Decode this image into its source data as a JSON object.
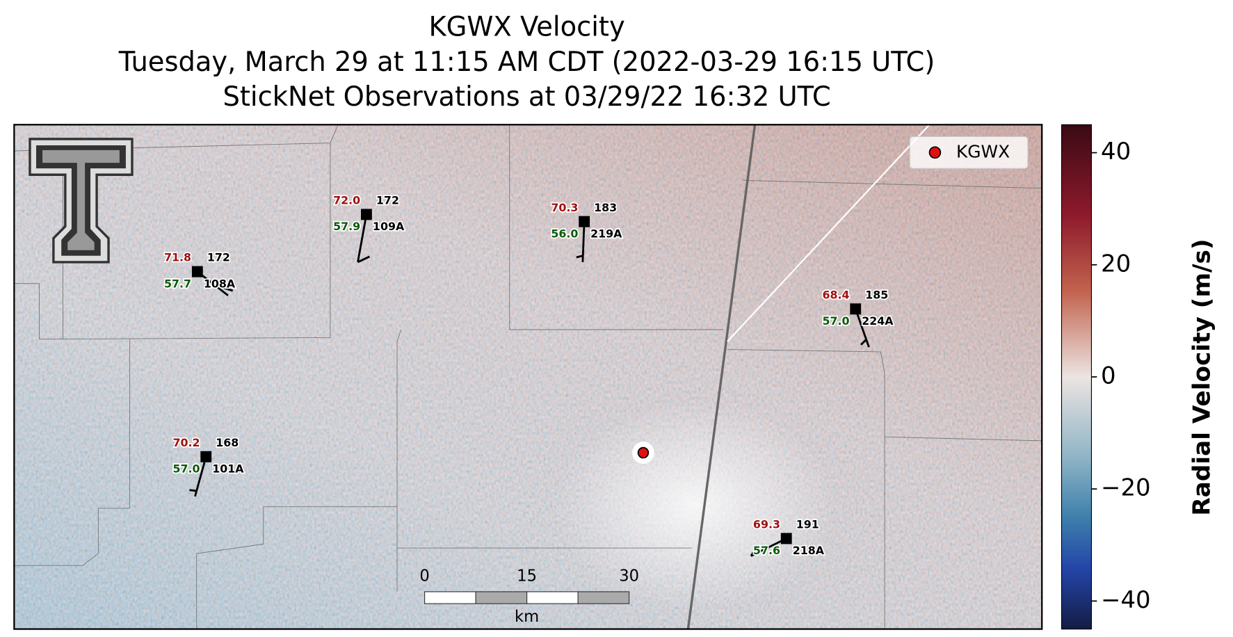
{
  "title": [
    "KGWX Velocity",
    "Tuesday, March 29 at 11:15 AM CDT (2022-03-29 16:15 UTC)",
    "StickNet Observations at 03/29/22 16:32 UTC"
  ],
  "legend": "KGWX",
  "stations": [
    {
      "id": "108A",
      "temperature": "71.8",
      "dewpoint": "57.7",
      "pressure": "172"
    },
    {
      "id": "109A",
      "temperature": "72.0",
      "dewpoint": "57.9",
      "pressure": "172"
    },
    {
      "id": "219A",
      "temperature": "70.3",
      "dewpoint": "56.0",
      "pressure": "183"
    },
    {
      "id": "224A",
      "temperature": "68.4",
      "dewpoint": "57.0",
      "pressure": "185"
    },
    {
      "id": "101A",
      "temperature": "70.2",
      "dewpoint": "57.0",
      "pressure": "168"
    },
    {
      "id": "218A",
      "temperature": "69.3",
      "dewpoint": "57.6",
      "pressure": "191"
    }
  ],
  "scale_bar": {
    "ticks": [
      "0",
      "15",
      "30"
    ],
    "unit": "km"
  },
  "colorbar": {
    "label": "Radial Velocity (m/s)",
    "lim": [
      -45,
      45
    ],
    "ticks": [
      {
        "value": -40,
        "label": "−40"
      },
      {
        "value": -20,
        "label": "−20"
      },
      0,
      20,
      40
    ]
  }
}
